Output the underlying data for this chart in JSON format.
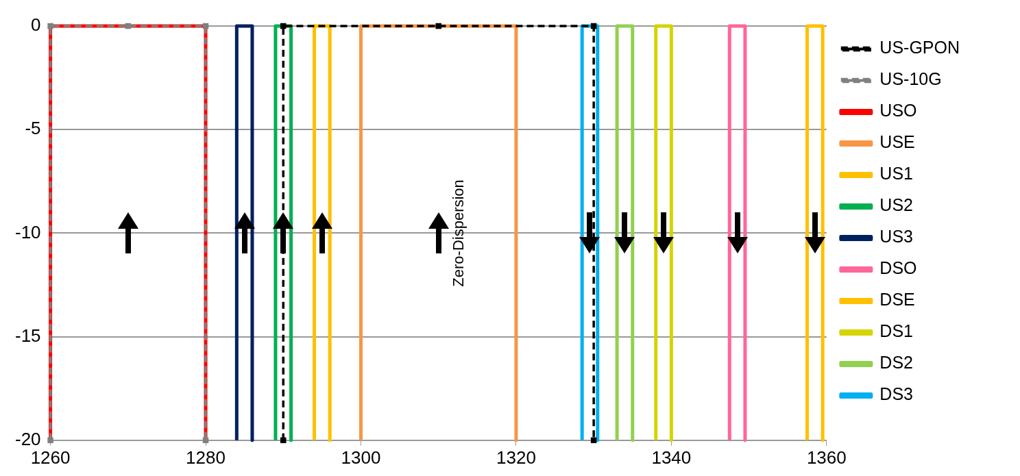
{
  "chart_data": {
    "type": "line",
    "xlim": [
      1260,
      1360
    ],
    "xticks": [
      1260,
      1280,
      1300,
      1320,
      1340,
      1360
    ],
    "ylim": [
      -20,
      0
    ],
    "yticks": [
      0,
      -5,
      -10,
      -15,
      -20
    ],
    "grid": "y",
    "legend": "right",
    "marker": "none",
    "line_style": "solid",
    "annotations": [
      "Zero-Dispersion"
    ],
    "series": [
      {
        "name": "US-GPON",
        "color": "#000000",
        "marker": "square",
        "line_style": "dashed",
        "x": [
          1290,
          1290,
          1310,
          1330,
          1330
        ],
        "values": [
          -20,
          0,
          0,
          0,
          -20
        ]
      },
      {
        "name": "US-10G",
        "color": "#808080",
        "marker": "square",
        "line_style": "dashed",
        "x": [
          1260,
          1260,
          1270,
          1280,
          1280
        ],
        "values": [
          -20,
          0,
          0,
          0,
          -20
        ]
      },
      {
        "name": "USO",
        "color": "#ff0000",
        "x": [
          1260,
          1260,
          1280,
          1280
        ],
        "values": [
          -20,
          0,
          0,
          -20
        ]
      },
      {
        "name": "USE",
        "color": "#f79646",
        "x": [
          1300,
          1300,
          1320,
          1320
        ],
        "values": [
          -20,
          0,
          0,
          -20
        ]
      },
      {
        "name": "US1",
        "color": "#ffc000",
        "x": [
          1294,
          1294,
          1296,
          1296
        ],
        "values": [
          -20,
          0,
          0,
          -20
        ]
      },
      {
        "name": "US2",
        "color": "#00b050",
        "x": [
          1289,
          1289,
          1291,
          1291
        ],
        "values": [
          -20,
          0,
          0,
          -20
        ]
      },
      {
        "name": "US3",
        "color": "#002060",
        "x": [
          1284,
          1284,
          1286,
          1286
        ],
        "values": [
          -20,
          0,
          0,
          -20
        ]
      },
      {
        "name": "DSO",
        "color": "#ff6699",
        "x": [
          1347.5,
          1347.5,
          1349.5,
          1349.5
        ],
        "values": [
          -20,
          0,
          0,
          -20
        ]
      },
      {
        "name": "DSE",
        "color": "#ffc000",
        "x": [
          1357.5,
          1357.5,
          1359.5,
          1359.5
        ],
        "values": [
          -20,
          0,
          0,
          -20
        ]
      },
      {
        "name": "DS1",
        "color": "#d4d400",
        "x": [
          1338,
          1338,
          1340,
          1340
        ],
        "values": [
          -20,
          0,
          0,
          -20
        ]
      },
      {
        "name": "DS2",
        "color": "#92d050",
        "x": [
          1333,
          1333,
          1335,
          1335
        ],
        "values": [
          -20,
          0,
          0,
          -20
        ]
      },
      {
        "name": "DS3",
        "color": "#00b0f0",
        "x": [
          1328.5,
          1328.5,
          1330.5,
          1330.5
        ],
        "values": [
          -20,
          0,
          0,
          -20
        ]
      }
    ]
  }
}
